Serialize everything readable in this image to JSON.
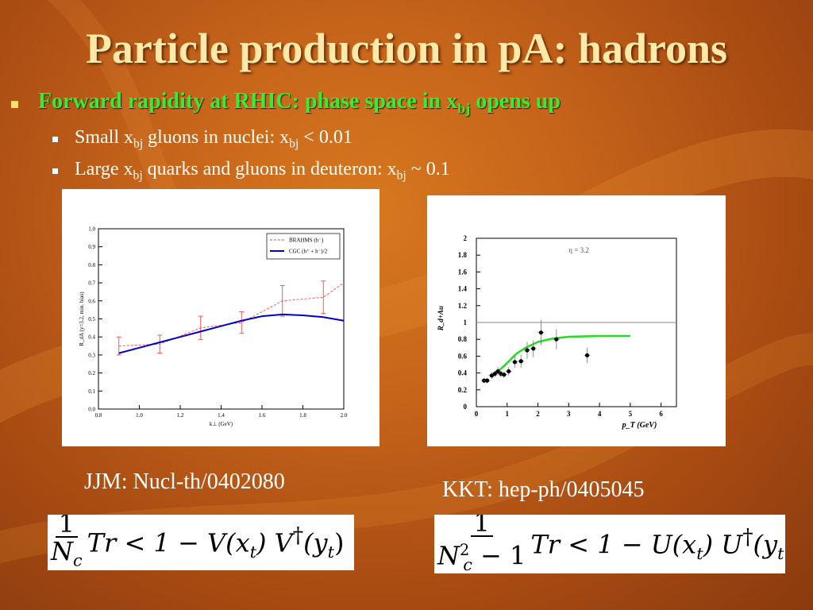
{
  "slide": {
    "title": "Particle production in pA: hadrons",
    "bullet1": {
      "pre": "Forward rapidity at RHIC: phase space in x",
      "sub": "bj",
      "post": " opens up"
    },
    "bullet2": {
      "a": "Small x",
      "sub1": "bj",
      "b": " gluons in nuclei: x",
      "sub2": "bj",
      "c": " < 0.01"
    },
    "bullet3": {
      "a": "Large x",
      "sub1": "bj",
      "b": " quarks and gluons in deuteron: x",
      "sub2": "bj",
      "c": " ~ 0.1"
    },
    "caption_left": "JJM: Nucl-th/0402080",
    "caption_right": "KKT: hep-ph/0405045",
    "formula_left": {
      "num": "1",
      "den": "N",
      "den_sub": "c",
      "expr": "Tr < 1 − V(x",
      "x_sub": "t",
      "mid": ") V",
      "dag": "†",
      "tail": "(y",
      "y_sub": "t",
      "end": ") >"
    },
    "formula_right": {
      "num": "1",
      "den": "N",
      "den_sup": "2",
      "den_sub": "c",
      "den_tail": " − 1",
      "expr": "Tr < 1 − U(x",
      "x_sub": "t",
      "mid": ") U",
      "dag": "†",
      "tail": "(y",
      "y_sub": "t",
      "end": ") >"
    },
    "colors": {
      "title": "#ffe9a8",
      "highlight": "#33ee33",
      "background": "#c5631a"
    }
  },
  "chart_data": [
    {
      "type": "line",
      "xlabel": "k⊥ (GeV)",
      "ylabel": "R_dA (y=3.2, min. bias)",
      "xlim": [
        0.8,
        2.0
      ],
      "ylim": [
        0.0,
        1.0
      ],
      "xticks": [
        "0.8",
        "1.0",
        "1.2",
        "1.4",
        "1.6",
        "1.8",
        "2.0"
      ],
      "yticks": [
        "0.0",
        "0.1",
        "0.2",
        "0.3",
        "0.4",
        "0.5",
        "0.6",
        "0.7",
        "0.8",
        "0.9",
        "1.0"
      ],
      "legend_position": "top-right",
      "series": [
        {
          "name": "BRAHMS (h⁻)",
          "style": "dashed",
          "color": "#ff4444",
          "x": [
            0.9,
            1.1,
            1.3,
            1.5,
            1.7,
            1.9,
            2.0
          ],
          "y": [
            0.35,
            0.36,
            0.45,
            0.48,
            0.6,
            0.62,
            0.7
          ],
          "err": [
            0.05,
            0.05,
            0.065,
            0.06,
            0.085,
            0.09,
            null
          ]
        },
        {
          "name": "CGC (h⁺ + h⁻)/2",
          "style": "solid",
          "color": "#0000cc",
          "x": [
            0.9,
            1.0,
            1.1,
            1.2,
            1.3,
            1.4,
            1.5,
            1.6,
            1.7,
            1.8,
            1.9,
            2.0
          ],
          "y": [
            0.31,
            0.34,
            0.37,
            0.4,
            0.43,
            0.46,
            0.49,
            0.515,
            0.525,
            0.52,
            0.51,
            0.49
          ]
        }
      ]
    },
    {
      "type": "scatter",
      "annotation": "η = 3.2",
      "xlabel": "p_T (GeV)",
      "ylabel": "R_d+Au",
      "xlim": [
        0,
        6.5
      ],
      "ylim": [
        0,
        2.0
      ],
      "xticks": [
        "0",
        "1",
        "2",
        "3",
        "4",
        "5",
        "6"
      ],
      "yticks": [
        "0",
        "0.2",
        "0.4",
        "0.6",
        "0.8",
        "1",
        "1.2",
        "1.4",
        "1.6",
        "1.8",
        "2"
      ],
      "reference_line": 1,
      "series": [
        {
          "name": "data",
          "color": "#000000",
          "x": [
            0.25,
            0.35,
            0.5,
            0.6,
            0.7,
            0.8,
            0.9,
            1.05,
            1.25,
            1.45,
            1.65,
            1.85,
            2.1,
            2.6,
            3.6
          ],
          "y": [
            0.31,
            0.31,
            0.37,
            0.39,
            0.42,
            0.39,
            0.38,
            0.42,
            0.53,
            0.54,
            0.67,
            0.69,
            0.88,
            0.8,
            0.61
          ],
          "err": [
            0.03,
            0.03,
            0.04,
            0.04,
            0.05,
            0.04,
            0.04,
            0.05,
            0.07,
            0.08,
            0.1,
            0.1,
            0.15,
            0.12,
            0.09
          ]
        },
        {
          "name": "theory",
          "color": "#22dd22",
          "x": [
            0.5,
            0.8,
            1.0,
            1.3,
            1.6,
            2.0,
            2.5,
            3.0,
            4.0,
            5.0
          ],
          "y": [
            0.38,
            0.45,
            0.52,
            0.63,
            0.7,
            0.77,
            0.81,
            0.83,
            0.84,
            0.84
          ]
        }
      ]
    }
  ]
}
